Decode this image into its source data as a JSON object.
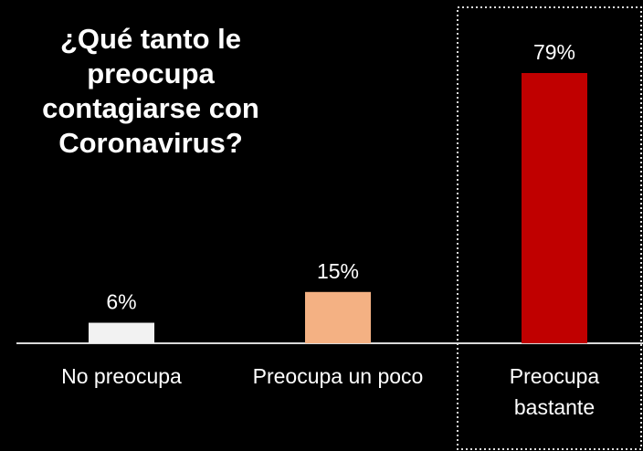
{
  "chart_data": {
    "type": "bar",
    "title": "¿Qué tanto le preocupa contagiarse con Coronavirus?",
    "categories": [
      "No preocupa",
      "Preocupa un poco",
      "Preocupa bastante"
    ],
    "values": [
      6,
      15,
      79
    ],
    "value_labels": [
      "6%",
      "15%",
      "79%"
    ],
    "colors": [
      "#f2f2f2",
      "#f4b183",
      "#c00000"
    ]
  }
}
